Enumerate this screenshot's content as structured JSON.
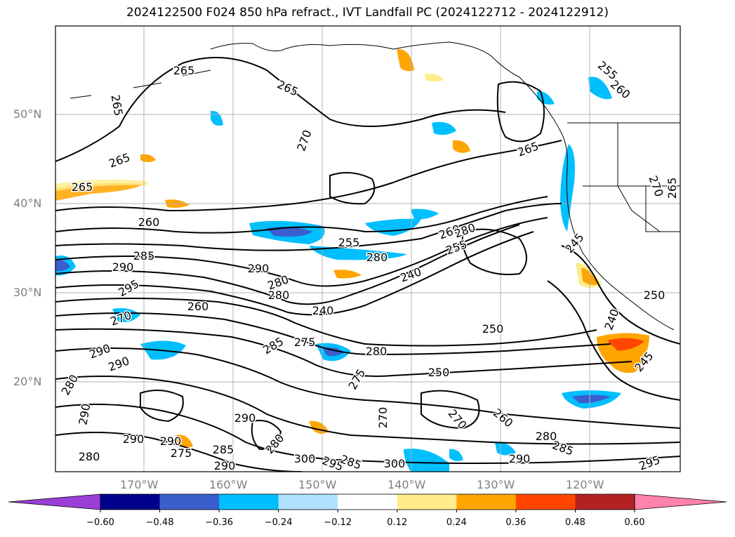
{
  "title": "2024122500 F024 850 hPa refract., IVT Landfall PC (2024122712 - 2024122912)",
  "map": {
    "lat_labels": [
      "50°N",
      "40°N",
      "30°N",
      "20°N"
    ],
    "lon_labels": [
      "170°W",
      "160°W",
      "150°W",
      "140°W",
      "130°W",
      "120°W"
    ],
    "contour_labels": [
      {
        "t": "265"
      },
      {
        "t": "265"
      },
      {
        "t": "265"
      },
      {
        "t": "270"
      },
      {
        "t": "265"
      },
      {
        "t": "265"
      },
      {
        "t": "255"
      },
      {
        "t": "260"
      },
      {
        "t": "265"
      },
      {
        "t": "260"
      },
      {
        "t": "255"
      },
      {
        "t": "260"
      },
      {
        "t": "280"
      },
      {
        "t": "280"
      },
      {
        "t": "255"
      },
      {
        "t": "285"
      },
      {
        "t": "290"
      },
      {
        "t": "290"
      },
      {
        "t": "280"
      },
      {
        "t": "240"
      },
      {
        "t": "295"
      },
      {
        "t": "260"
      },
      {
        "t": "240"
      },
      {
        "t": "270"
      },
      {
        "t": "250"
      },
      {
        "t": "290"
      },
      {
        "t": "285"
      },
      {
        "t": "275"
      },
      {
        "t": "280"
      },
      {
        "t": "290"
      },
      {
        "t": "250"
      },
      {
        "t": "275"
      },
      {
        "t": "280"
      },
      {
        "t": "270"
      },
      {
        "t": "260"
      },
      {
        "t": "270"
      },
      {
        "t": "280"
      },
      {
        "t": "285"
      },
      {
        "t": "290"
      },
      {
        "t": "290"
      },
      {
        "t": "280"
      },
      {
        "t": "290"
      },
      {
        "t": "275"
      },
      {
        "t": "285"
      },
      {
        "t": "290"
      },
      {
        "t": "300"
      },
      {
        "t": "295"
      },
      {
        "t": "285"
      },
      {
        "t": "300"
      },
      {
        "t": "290"
      },
      {
        "t": "295"
      },
      {
        "t": "245"
      },
      {
        "t": "250"
      },
      {
        "t": "240"
      },
      {
        "t": "245"
      },
      {
        "t": "270"
      },
      {
        "t": "265"
      },
      {
        "t": "280"
      },
      {
        "t": "290"
      },
      {
        "t": "280"
      }
    ]
  },
  "colorbar": {
    "ticks": [
      "−0.60",
      "−0.48",
      "−0.36",
      "−0.24",
      "−0.12",
      "0.12",
      "0.24",
      "0.36",
      "0.48",
      "0.60"
    ],
    "colors": [
      "#9a3fd6",
      "#00008b",
      "#3a5fcd",
      "#00bfff",
      "#b0e2ff",
      "#ffffff",
      "#ffec8b",
      "#ffa500",
      "#ff4500",
      "#b22222",
      "#ff82ab"
    ]
  }
}
